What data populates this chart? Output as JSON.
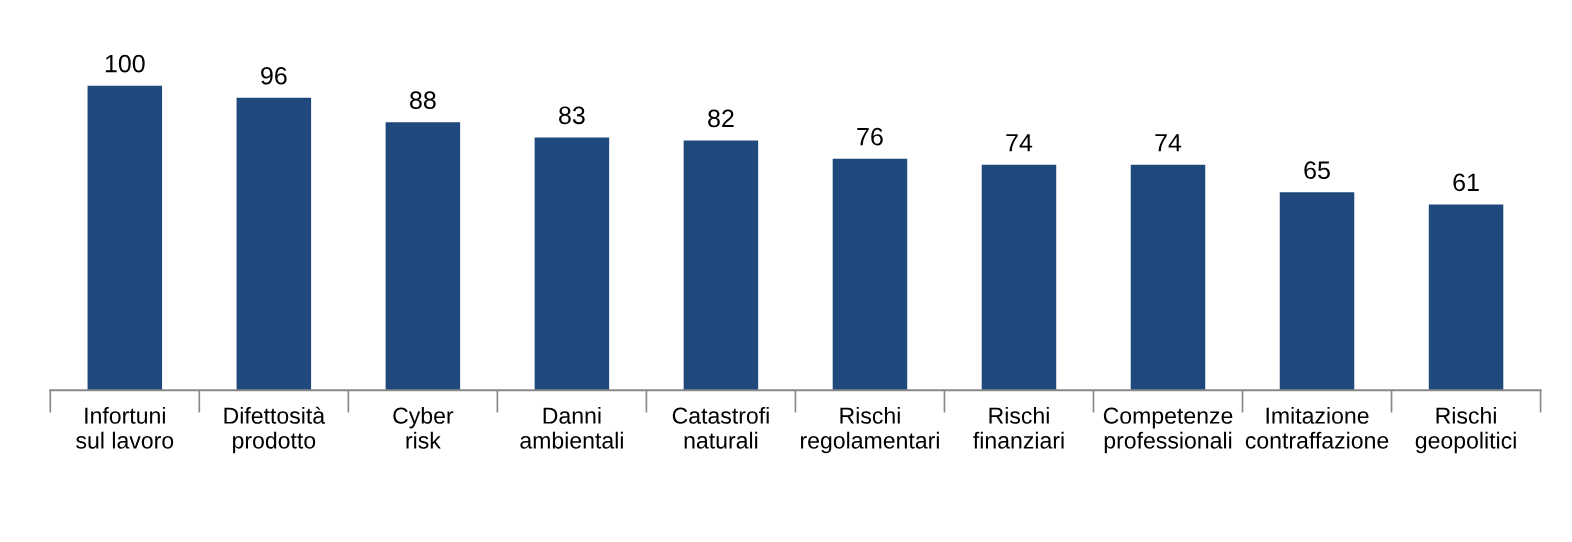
{
  "chart_data": {
    "type": "bar",
    "categories": [
      "Infortuni\nsul lavoro",
      "Difettosità\nprodotto",
      "Cyber\nrisk",
      "Danni\nambientali",
      "Catastrofi\nnaturali",
      "Rischi\nregolamentari",
      "Rischi\nfinanziari",
      "Competenze\nprofessionali",
      "Imitazione\ncontraffazione",
      "Rischi\ngeopolitici"
    ],
    "values": [
      100,
      96,
      88,
      83,
      82,
      76,
      74,
      74,
      65,
      61
    ],
    "color": "#1f497d",
    "data_labels": true,
    "grid": false,
    "legend": false
  }
}
